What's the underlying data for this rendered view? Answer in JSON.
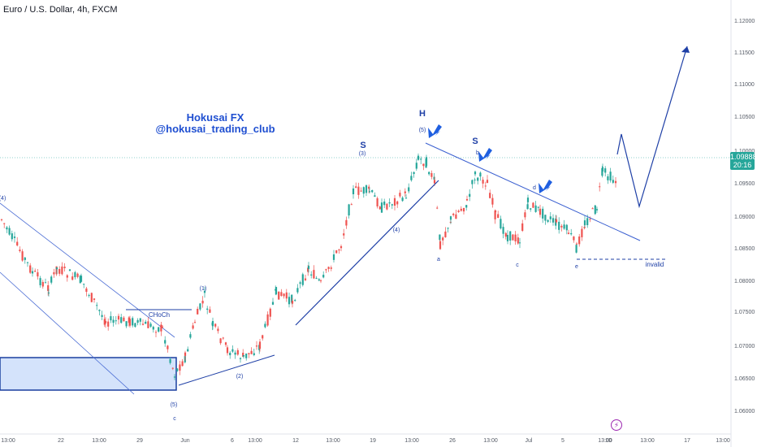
{
  "title": "Euro / U.S. Dollar, 4h, FXCM",
  "watermark": {
    "name": "Hokusai FX",
    "handle": "@hokusai_trading_club"
  },
  "price_badge": {
    "price": "1.09888",
    "countdown": "20:16"
  },
  "chart_data": {
    "type": "candlestick",
    "ylim": [
      1.056,
      1.124
    ],
    "y_ticks": [
      "1.12000",
      "1.11500",
      "1.11000",
      "1.10500",
      "1.10000",
      "1.09500",
      "1.09000",
      "1.08500",
      "1.08000",
      "1.07500",
      "1.07000",
      "1.06500",
      "1.06000"
    ],
    "x_ticks": [
      "13:00",
      "22",
      "13:00",
      "29",
      "Jun",
      "6",
      "13:00",
      "12",
      "13:00",
      "19",
      "13:00",
      "26",
      "13:00",
      "Jul",
      "5",
      "13:00",
      "10",
      "13:00",
      "17",
      "13:00"
    ],
    "annotations": [
      {
        "text": "H"
      },
      {
        "text": "S"
      },
      {
        "text": "S"
      },
      {
        "text": "(5)"
      },
      {
        "text": "(3)"
      },
      {
        "text": "(4)"
      },
      {
        "text": "(1)"
      },
      {
        "text": "(2)"
      },
      {
        "text": "(5)"
      },
      {
        "text": "(4)"
      },
      {
        "text": "a"
      },
      {
        "text": "b"
      },
      {
        "text": "c"
      },
      {
        "text": "d"
      },
      {
        "text": "e"
      },
      {
        "text": "c"
      },
      {
        "text": "CHoCh"
      },
      {
        "text": "invalid"
      }
    ],
    "colors": {
      "up": "#26a69a",
      "down": "#ef5350",
      "drawing": "#1e3fa6",
      "arrow": "#1f5fe0"
    }
  }
}
